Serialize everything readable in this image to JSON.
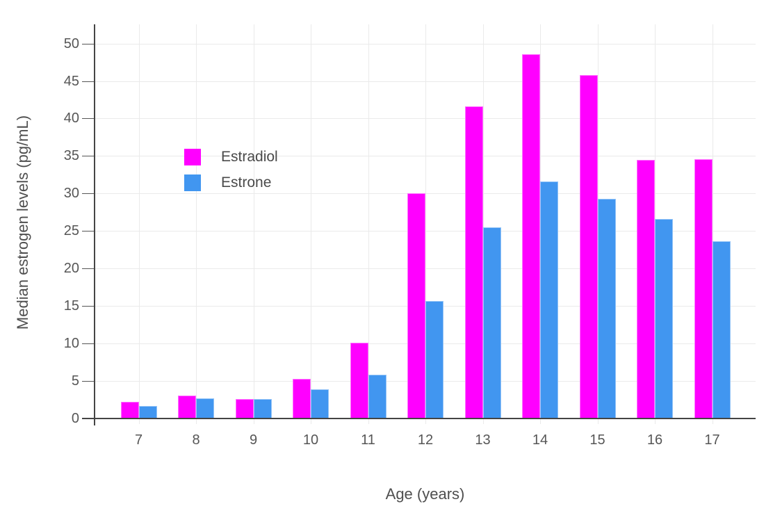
{
  "chart_data": {
    "type": "bar",
    "title": "",
    "xlabel": "Age (years)",
    "ylabel": "Median estrogen levels (pg/mL)",
    "categories": [
      "7",
      "8",
      "9",
      "10",
      "11",
      "12",
      "13",
      "14",
      "15",
      "16",
      "17"
    ],
    "series": [
      {
        "name": "Estradiol",
        "color": "#FF00FF",
        "values": [
          2.2,
          3.1,
          2.6,
          5.3,
          10.1,
          30.0,
          41.6,
          48.6,
          45.8,
          34.5,
          34.6
        ]
      },
      {
        "name": "Estrone",
        "color": "#4196F0",
        "values": [
          1.7,
          2.7,
          2.6,
          3.9,
          5.8,
          15.7,
          25.5,
          31.6,
          29.3,
          26.6,
          23.6
        ]
      }
    ],
    "yticks": [
      0,
      5,
      10,
      15,
      20,
      25,
      30,
      35,
      40,
      45,
      50
    ],
    "ylim": [
      0,
      52.6
    ],
    "grid": true,
    "legend_position": "inside top-left",
    "colors": {
      "axis_line": "#444444",
      "grid_line": "#EAEAEA",
      "tick_text": "#565656",
      "title_text": "#4f4f4f",
      "background": "#ffffff"
    }
  }
}
